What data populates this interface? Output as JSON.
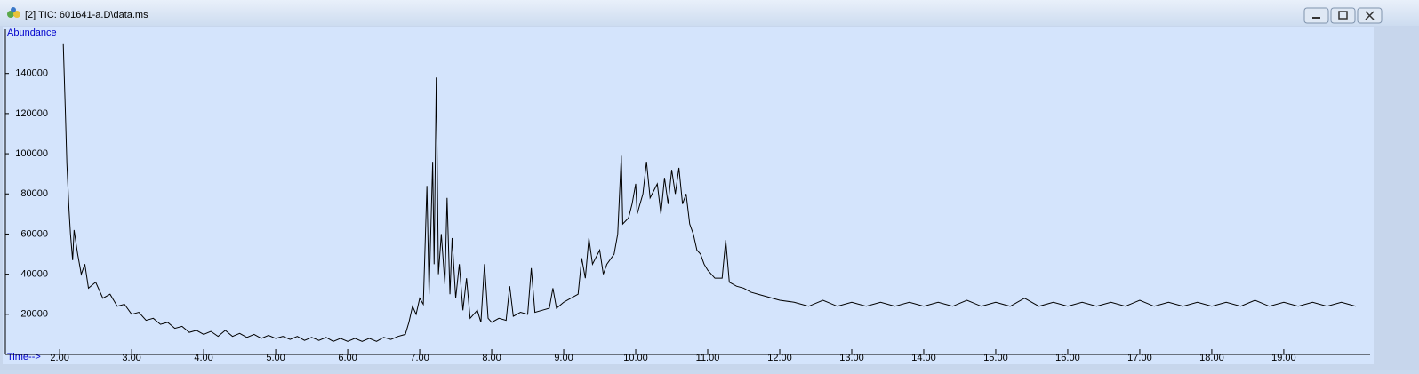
{
  "window": {
    "title": "[2] TIC: 601641-a.D\\data.ms"
  },
  "chart_data": {
    "type": "line",
    "ylabel": "Abundance",
    "xlabel": "Time-->",
    "color": "#000000",
    "xlim": [
      1.27,
      20.1
    ],
    "ylim": [
      0,
      162000
    ],
    "xticks": [
      {
        "value": 2,
        "label": "2.00"
      },
      {
        "value": 3,
        "label": "3.00"
      },
      {
        "value": 4,
        "label": "4.00"
      },
      {
        "value": 5,
        "label": "5.00"
      },
      {
        "value": 6,
        "label": "6.00"
      },
      {
        "value": 7,
        "label": "7.00"
      },
      {
        "value": 8,
        "label": "8.00"
      },
      {
        "value": 9,
        "label": "9.00"
      },
      {
        "value": 10,
        "label": "10.00"
      },
      {
        "value": 11,
        "label": "11.00"
      },
      {
        "value": 12,
        "label": "12.00"
      },
      {
        "value": 13,
        "label": "13.00"
      },
      {
        "value": 14,
        "label": "14.00"
      },
      {
        "value": 15,
        "label": "15.00"
      },
      {
        "value": 16,
        "label": "16.00"
      },
      {
        "value": 17,
        "label": "17.00"
      },
      {
        "value": 18,
        "label": "18.00"
      },
      {
        "value": 19,
        "label": "19.00"
      }
    ],
    "yticks": [
      20000,
      40000,
      60000,
      80000,
      100000,
      120000,
      140000
    ],
    "x": [
      2.05,
      2.08,
      2.1,
      2.13,
      2.15,
      2.18,
      2.2,
      2.25,
      2.3,
      2.35,
      2.4,
      2.5,
      2.6,
      2.7,
      2.8,
      2.9,
      3.0,
      3.1,
      3.2,
      3.3,
      3.4,
      3.5,
      3.6,
      3.7,
      3.8,
      3.9,
      4.0,
      4.1,
      4.2,
      4.3,
      4.4,
      4.5,
      4.6,
      4.7,
      4.8,
      4.9,
      5.0,
      5.1,
      5.2,
      5.3,
      5.4,
      5.5,
      5.6,
      5.7,
      5.8,
      5.9,
      6.0,
      6.1,
      6.2,
      6.3,
      6.4,
      6.5,
      6.6,
      6.7,
      6.8,
      6.85,
      6.9,
      6.95,
      7.0,
      7.05,
      7.1,
      7.13,
      7.18,
      7.2,
      7.23,
      7.26,
      7.3,
      7.35,
      7.38,
      7.42,
      7.45,
      7.5,
      7.55,
      7.6,
      7.65,
      7.7,
      7.8,
      7.85,
      7.9,
      7.95,
      8.0,
      8.1,
      8.2,
      8.25,
      8.3,
      8.4,
      8.5,
      8.55,
      8.6,
      8.7,
      8.8,
      8.85,
      8.9,
      9.0,
      9.1,
      9.2,
      9.25,
      9.3,
      9.35,
      9.4,
      9.5,
      9.55,
      9.6,
      9.7,
      9.75,
      9.8,
      9.82,
      9.9,
      9.95,
      10.0,
      10.02,
      10.1,
      10.15,
      10.2,
      10.3,
      10.35,
      10.4,
      10.45,
      10.5,
      10.55,
      10.6,
      10.65,
      10.7,
      10.75,
      10.8,
      10.85,
      10.9,
      10.95,
      11.0,
      11.1,
      11.2,
      11.25,
      11.3,
      11.4,
      11.5,
      11.6,
      11.7,
      11.8,
      11.9,
      12.0,
      12.2,
      12.4,
      12.6,
      12.8,
      13.0,
      13.2,
      13.4,
      13.6,
      13.8,
      14.0,
      14.2,
      14.4,
      14.6,
      14.8,
      15.0,
      15.2,
      15.4,
      15.6,
      15.8,
      16.0,
      16.2,
      16.4,
      16.6,
      16.8,
      17.0,
      17.2,
      17.4,
      17.6,
      17.8,
      18.0,
      18.2,
      18.4,
      18.6,
      18.8,
      19.0,
      19.2,
      19.4,
      19.6,
      19.8,
      20.0
    ],
    "values": [
      155000,
      120000,
      95000,
      72000,
      60000,
      47000,
      62000,
      50000,
      40000,
      45000,
      33000,
      36000,
      28000,
      30000,
      24000,
      25000,
      20000,
      21000,
      17000,
      18000,
      15000,
      16000,
      13000,
      14000,
      11000,
      12000,
      10000,
      11500,
      9000,
      12000,
      9000,
      10500,
      8500,
      10000,
      8000,
      9500,
      8000,
      9000,
      7500,
      9000,
      7000,
      8500,
      7000,
      8500,
      6500,
      8000,
      6500,
      8000,
      6500,
      8000,
      6500,
      8500,
      7500,
      9000,
      10000,
      16000,
      24000,
      20000,
      28000,
      25000,
      84000,
      30000,
      96000,
      45000,
      138000,
      40000,
      60000,
      35000,
      78000,
      30000,
      58000,
      28000,
      45000,
      22000,
      38000,
      18000,
      22000,
      16000,
      45000,
      18000,
      16000,
      18000,
      17000,
      34000,
      19000,
      21000,
      20000,
      43000,
      21000,
      22000,
      23000,
      33000,
      23000,
      26000,
      28000,
      30000,
      48000,
      38000,
      58000,
      45000,
      52000,
      40000,
      45000,
      50000,
      60000,
      99000,
      65000,
      68000,
      75000,
      85000,
      70000,
      80000,
      96000,
      78000,
      85000,
      70000,
      88000,
      75000,
      92000,
      80000,
      93000,
      75000,
      80000,
      65000,
      60000,
      52000,
      50000,
      45000,
      42000,
      38000,
      38000,
      57000,
      36000,
      34000,
      33000,
      31000,
      30000,
      29000,
      28000,
      27000,
      26000,
      24000,
      27000,
      24000,
      26000,
      24000,
      26000,
      24000,
      26000,
      24000,
      26000,
      24000,
      27000,
      24000,
      26000,
      24000,
      28000,
      24000,
      26000,
      24000,
      26000,
      24000,
      26000,
      24000,
      27000,
      24000,
      26000,
      24000,
      26000,
      24000,
      26000,
      24000,
      27000,
      24000,
      26000,
      24000,
      26000,
      24000,
      26000,
      24000
    ]
  }
}
